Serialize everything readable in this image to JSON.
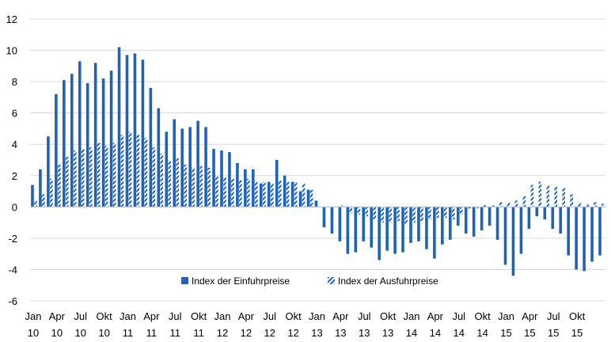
{
  "chart_data": {
    "type": "bar",
    "ylim": [
      -6,
      12
    ],
    "yticks": [
      -6,
      -4,
      -2,
      0,
      2,
      4,
      6,
      8,
      10,
      12
    ],
    "grid": "horizontal",
    "legend_position": "bottom-center",
    "colors": {
      "import": "#1f63b8",
      "export_stripe": "#1f63b8",
      "export_bg": "#ffffff",
      "grid": "#d9d9d9"
    },
    "x_tick_labels": [
      {
        "index": 0,
        "month": "Jan",
        "year": "10"
      },
      {
        "index": 3,
        "month": "Apr",
        "year": "10"
      },
      {
        "index": 6,
        "month": "Jul",
        "year": "10"
      },
      {
        "index": 9,
        "month": "Okt",
        "year": "10"
      },
      {
        "index": 12,
        "month": "Jan",
        "year": "11"
      },
      {
        "index": 15,
        "month": "Apr",
        "year": "11"
      },
      {
        "index": 18,
        "month": "Jul",
        "year": "11"
      },
      {
        "index": 21,
        "month": "Okt",
        "year": "11"
      },
      {
        "index": 24,
        "month": "Jan",
        "year": "12"
      },
      {
        "index": 27,
        "month": "Apr",
        "year": "12"
      },
      {
        "index": 30,
        "month": "Jul",
        "year": "12"
      },
      {
        "index": 33,
        "month": "Okt",
        "year": "12"
      },
      {
        "index": 36,
        "month": "Jan",
        "year": "13"
      },
      {
        "index": 39,
        "month": "Apr",
        "year": "13"
      },
      {
        "index": 42,
        "month": "Jul",
        "year": "13"
      },
      {
        "index": 45,
        "month": "Okt",
        "year": "13"
      },
      {
        "index": 48,
        "month": "Jan",
        "year": "14"
      },
      {
        "index": 51,
        "month": "Apr",
        "year": "14"
      },
      {
        "index": 54,
        "month": "Jul",
        "year": "14"
      },
      {
        "index": 57,
        "month": "Okt",
        "year": "14"
      },
      {
        "index": 60,
        "month": "Jan",
        "year": "15"
      },
      {
        "index": 63,
        "month": "Apr",
        "year": "15"
      },
      {
        "index": 66,
        "month": "Jul",
        "year": "15"
      },
      {
        "index": 69,
        "month": "Okt",
        "year": "15"
      }
    ],
    "series": [
      {
        "name": "Index der Einfuhrpreise",
        "style": "solid",
        "values": [
          1.4,
          2.4,
          4.5,
          7.2,
          8.1,
          8.5,
          9.3,
          7.9,
          9.2,
          8.2,
          8.7,
          10.2,
          9.7,
          9.8,
          9.4,
          7.6,
          6.3,
          4.8,
          5.6,
          5.0,
          5.1,
          5.5,
          5.1,
          3.7,
          3.6,
          3.5,
          2.8,
          2.4,
          2.4,
          1.5,
          1.6,
          3.0,
          2.0,
          1.6,
          1.0,
          1.1,
          0.4,
          -1.3,
          -1.7,
          -2.2,
          -3.0,
          -2.9,
          -2.2,
          -2.6,
          -3.4,
          -2.8,
          -3.0,
          -2.9,
          -2.3,
          -2.2,
          -2.7,
          -3.3,
          -2.4,
          -2.1,
          -1.2,
          -1.7,
          -1.9,
          -1.5,
          -1.2,
          -2.1,
          -3.7,
          -4.4,
          -3.0,
          -1.4,
          -0.6,
          -0.8,
          -1.4,
          -1.7,
          -3.1,
          -4.0,
          -4.1,
          -3.5,
          -3.1
        ]
      },
      {
        "name": "Index der Ausfuhrpreise",
        "style": "hatched",
        "values": [
          0.4,
          0.8,
          1.8,
          2.7,
          3.2,
          3.6,
          3.7,
          3.8,
          4.1,
          3.9,
          4.1,
          4.6,
          4.8,
          4.6,
          4.4,
          3.8,
          3.4,
          2.9,
          3.1,
          2.7,
          2.5,
          2.6,
          2.5,
          2.0,
          1.9,
          1.8,
          1.7,
          1.8,
          1.6,
          1.6,
          1.5,
          1.7,
          1.6,
          1.6,
          1.5,
          1.1,
          0.0,
          0.0,
          0.0,
          0.1,
          -0.4,
          -0.5,
          -0.6,
          -0.8,
          -1.0,
          -1.0,
          -0.9,
          -1.1,
          -1.0,
          -0.9,
          -0.8,
          -0.7,
          -0.7,
          -0.8,
          -0.5,
          -0.1,
          -0.1,
          0.1,
          0.1,
          0.3,
          0.3,
          0.4,
          0.7,
          1.4,
          1.6,
          1.4,
          1.3,
          1.2,
          0.8,
          0.3,
          0.2,
          0.3,
          0.2
        ]
      }
    ]
  }
}
